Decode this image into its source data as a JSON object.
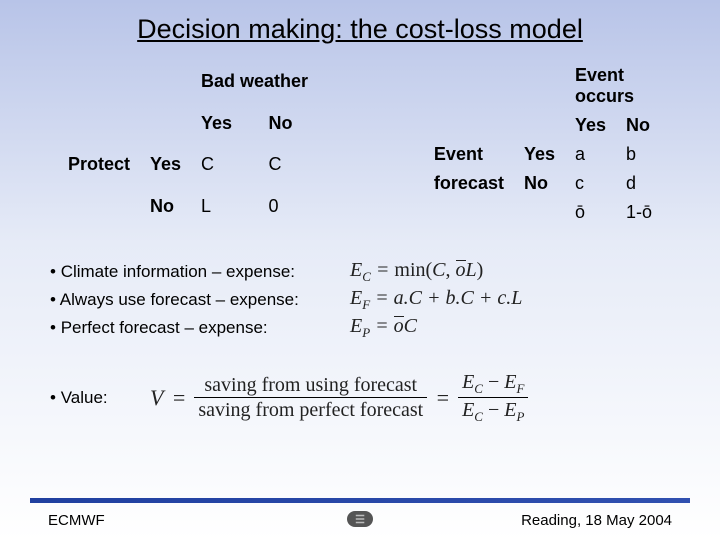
{
  "title": "Decision making: the cost-loss model",
  "table1": {
    "col_header": "Bad weather",
    "cols": [
      "Yes",
      "No"
    ],
    "row_header": "Protect",
    "rows": [
      "Yes",
      "No"
    ],
    "cells": [
      [
        "C",
        "C"
      ],
      [
        "L",
        "0"
      ]
    ]
  },
  "table2": {
    "col_header_line1": "Event",
    "col_header_line2": "occurs",
    "cols": [
      "Yes",
      "No"
    ],
    "row_header_line1": "Event",
    "row_header_line2": "forecast",
    "rows": [
      "Yes",
      "No"
    ],
    "cells": [
      [
        "a",
        "b"
      ],
      [
        "c",
        "d"
      ]
    ],
    "bottom": [
      "ō",
      "1-ō"
    ]
  },
  "bullets": [
    {
      "label": "Climate information – expense:",
      "lhs": "E",
      "sub": "C",
      "rhs_text": "min(C, ",
      "rhs_mid_over": "o",
      "rhs_end": "L)",
      "prefix": "= "
    },
    {
      "label": "Always use forecast – expense:",
      "lhs": "E",
      "sub": "F",
      "rhs_text": "a.C + b.C + c.L",
      "prefix": "= "
    },
    {
      "label": "Perfect forecast – expense:",
      "lhs": "E",
      "sub": "P",
      "rhs_over": "o",
      "rhs_suffix": "C",
      "prefix": "= "
    }
  ],
  "value": {
    "label": "Value:",
    "V": "V",
    "frac1_num": "saving from using forecast",
    "frac1_den": "saving from perfect forecast",
    "EC": "E",
    "EC_sub": "C",
    "EF": "E",
    "EF_sub": "F",
    "EP": "E",
    "EP_sub": "P"
  },
  "footer": {
    "left": "ECMWF",
    "right": "Reading, 18 May 2004"
  }
}
